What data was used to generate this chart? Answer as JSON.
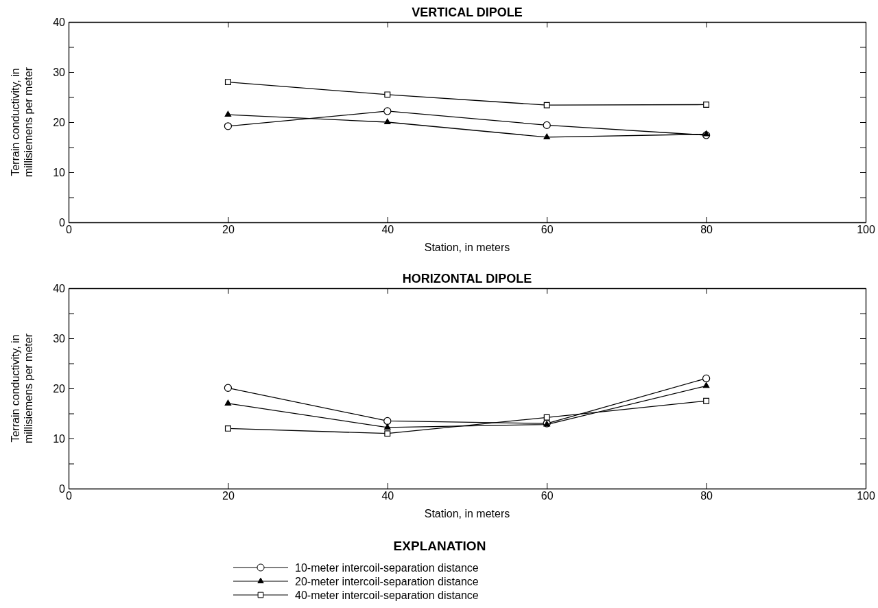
{
  "chart_data": [
    {
      "type": "line",
      "title": "VERTICAL DIPOLE",
      "xlabel": "Station, in meters",
      "ylabel": "Terrain conductivity, in millisiemens per meter",
      "x": [
        20,
        40,
        60,
        80
      ],
      "xlim": [
        0,
        100
      ],
      "xticks": [
        0,
        20,
        40,
        60,
        80,
        100
      ],
      "ylim": [
        0,
        40
      ],
      "yticks": [
        0,
        {
          "value": 5,
          "label": null
        },
        10,
        {
          "value": 15,
          "label": null
        },
        20,
        {
          "value": 25,
          "label": null
        },
        30,
        {
          "value": 35,
          "label": null
        },
        40
      ],
      "grid": false,
      "legend": false,
      "series": [
        {
          "color": "#000000",
          "marker": "circle",
          "values": [
            19.2,
            22.2,
            19.4,
            17.4
          ]
        },
        {
          "color": "#000000",
          "marker": "triangle",
          "values": [
            21.5,
            20,
            17,
            17.6
          ]
        },
        {
          "color": "#000000",
          "marker": "square",
          "values": [
            28,
            25.5,
            23.4,
            23.5
          ]
        }
      ]
    },
    {
      "type": "line",
      "title": "HORIZONTAL DIPOLE",
      "xlabel": "Station, in meters",
      "ylabel": "Terrain conductivity, in millisiemens per meter",
      "x": [
        20,
        40,
        60,
        80
      ],
      "xlim": [
        0,
        100
      ],
      "xticks": [
        0,
        20,
        40,
        60,
        80,
        100
      ],
      "ylim": [
        0,
        40
      ],
      "yticks": [
        0,
        {
          "value": 5,
          "label": null
        },
        10,
        {
          "value": 15,
          "label": null
        },
        20,
        {
          "value": 25,
          "label": null
        },
        30,
        {
          "value": 35,
          "label": null
        },
        40
      ],
      "grid": false,
      "legend": "bottom",
      "legend_title": "EXPLANATION",
      "series": [
        {
          "name": "10-meter intercoil-separation distance",
          "color": "#000000",
          "marker": "circle",
          "values": [
            20.1,
            13.5,
            13,
            22
          ]
        },
        {
          "name": "20-meter intercoil-separation distance",
          "color": "#000000",
          "marker": "triangle",
          "values": [
            17,
            12.2,
            12.8,
            20.5
          ]
        },
        {
          "name": "40-meter intercoil-separation distance",
          "color": "#000000",
          "marker": "square",
          "values": [
            12,
            11,
            14.2,
            17.5
          ]
        }
      ]
    }
  ]
}
